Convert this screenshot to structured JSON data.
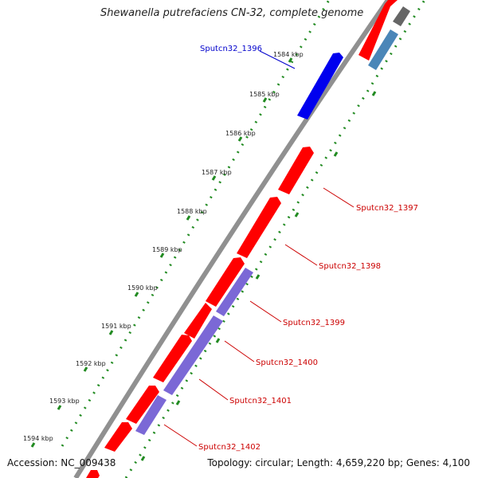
{
  "title": "Shewanella putrefaciens CN-32, complete genome",
  "footer": {
    "accession": "Accession: NC_009438",
    "topology": "Topology: circular; Length: 4,659,220 bp; Genes: 4,100"
  },
  "colors": {
    "backbone": "#888888",
    "cds_forward": "#ff0000",
    "cds_reverse": "#7b68d6",
    "highlight": "#0000ee",
    "rna": "#4a86b8",
    "other": "#666666",
    "tick": "#228b22",
    "label_red": "#cc0000",
    "label_blue": "#0000cc"
  },
  "tick_labels": [
    "1584 kbp",
    "1585 kbp",
    "1586 kbp",
    "1587 kbp",
    "1588 kbp",
    "1589 kbp",
    "1590 kbp",
    "1591 kbp",
    "1592 kbp",
    "1593 kbp",
    "1594 kbp"
  ],
  "gene_labels": {
    "g1396": "Sputcn32_1396",
    "g1397": "Sputcn32_1397",
    "g1398": "Sputcn32_1398",
    "g1399": "Sputcn32_1399",
    "g1400": "Sputcn32_1400",
    "g1401": "Sputcn32_1401",
    "g1402": "Sputcn32_1402"
  }
}
